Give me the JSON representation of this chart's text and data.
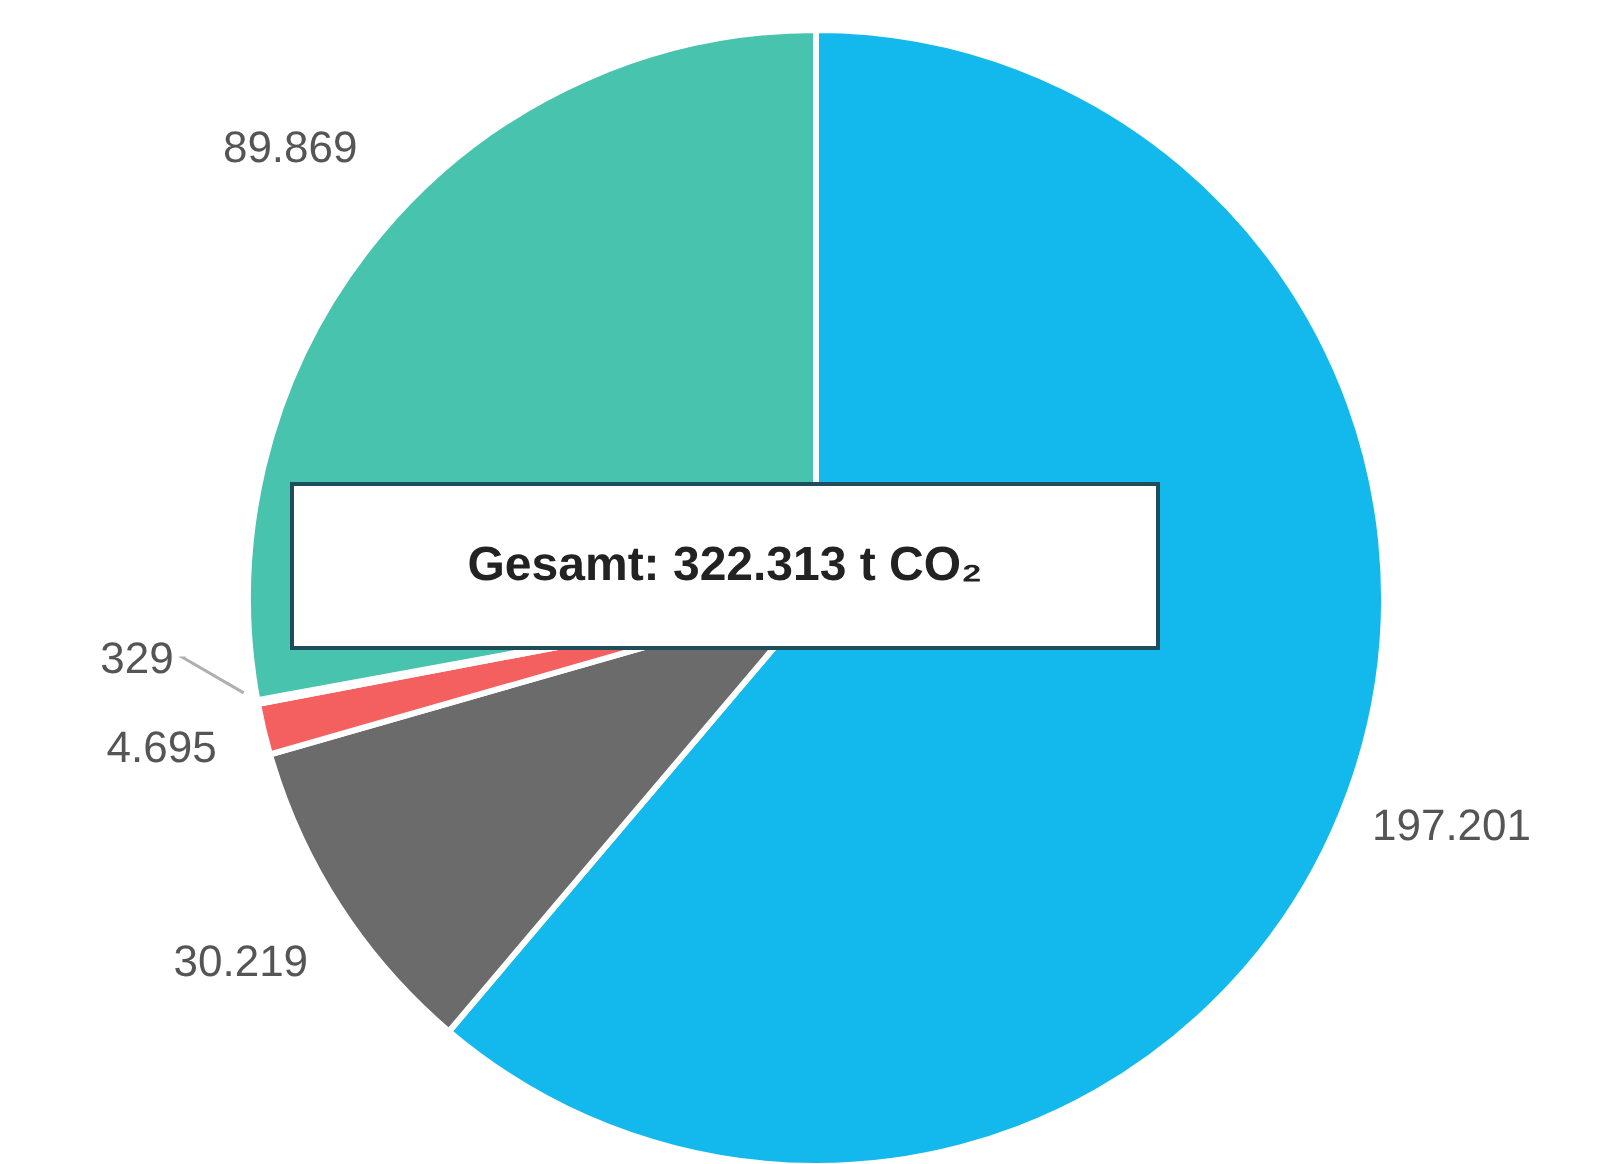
{
  "chart_data": {
    "type": "pie",
    "categories": [
      null,
      null,
      null,
      null,
      null
    ],
    "values": [
      197201,
      30219,
      4695,
      329,
      89869
    ],
    "value_labels": [
      "197.201",
      "30.219",
      "4.695",
      "329",
      "89.869"
    ],
    "colors": [
      "#13b9ec",
      "#6b6b6b",
      "#f4605f",
      "#c8c8c8",
      "#48c4ae"
    ],
    "annotations": [
      "Gesamt: 322.313 t CO₂"
    ],
    "legend": false
  }
}
